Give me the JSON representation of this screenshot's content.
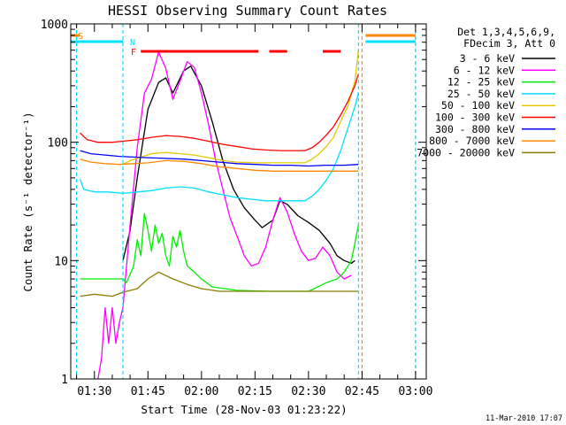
{
  "chart_data": {
    "type": "line",
    "title": "HESSI Observing Summary Count Rates",
    "xlabel": "Start Time (28-Nov-03 01:23:22)",
    "ylabel": "Count Rate (s⁻¹ detector⁻¹)",
    "yscale": "log",
    "ylim": [
      1,
      1000
    ],
    "xlim": [
      "01:23:22",
      "03:03:00"
    ],
    "y_ticks": [
      "1",
      "10",
      "100",
      "1000"
    ],
    "x_ticks": [
      "01:30",
      "01:45",
      "02:00",
      "02:15",
      "02:30",
      "02:45",
      "03:00"
    ],
    "grid": false,
    "legend_position": "top-right",
    "legend_header": [
      "Det 1,3,4,5,6,9,",
      "FDecim 3, Att 0"
    ],
    "footer_date": "11-Mar-2010 17:07",
    "flags": [
      {
        "label": "S",
        "color": "#ff8800",
        "segments": [
          [
            "01:23:22",
            "01:26"
          ],
          [
            "02:46",
            "03:00"
          ]
        ]
      },
      {
        "label": "N",
        "color": "#00e0ff",
        "segments": [
          [
            "01:23:22",
            "01:38"
          ],
          [
            "02:46",
            "03:00"
          ]
        ]
      },
      {
        "label": "F",
        "color": "#ff0000",
        "segments": [
          [
            "01:43",
            "02:16"
          ],
          [
            "02:19",
            "02:24"
          ],
          [
            "02:34",
            "02:39"
          ]
        ]
      }
    ],
    "markers": [
      {
        "time": "01:25",
        "color": "#00e0ff"
      },
      {
        "time": "01:38",
        "color": "#00e0ff"
      },
      {
        "time": "02:44",
        "color": "#00e0ff"
      },
      {
        "time": "02:45",
        "color": "#ff8800"
      },
      {
        "time": "03:00",
        "color": "#ff8800"
      },
      {
        "time": "03:00",
        "color": "#00e0ff"
      }
    ],
    "series": [
      {
        "name": "3 - 6 keV",
        "color": "#000000",
        "points": [
          [
            "01:38",
            10
          ],
          [
            "01:40",
            18
          ],
          [
            "01:42",
            50
          ],
          [
            "01:45",
            190
          ],
          [
            "01:48",
            320
          ],
          [
            "01:50",
            350
          ],
          [
            "01:52",
            260
          ],
          [
            "01:55",
            400
          ],
          [
            "01:57",
            440
          ],
          [
            "02:00",
            300
          ],
          [
            "02:03",
            150
          ],
          [
            "02:06",
            70
          ],
          [
            "02:09",
            40
          ],
          [
            "02:12",
            28
          ],
          [
            "02:15",
            22
          ],
          [
            "02:17",
            19
          ],
          [
            "02:20",
            22
          ],
          [
            "02:22",
            32
          ],
          [
            "02:24",
            30
          ],
          [
            "02:27",
            24
          ],
          [
            "02:30",
            21
          ],
          [
            "02:33",
            18
          ],
          [
            "02:36",
            14
          ],
          [
            "02:38",
            11
          ],
          [
            "02:40",
            10
          ],
          [
            "02:42",
            9.5
          ],
          [
            "02:43",
            10
          ]
        ]
      },
      {
        "name": "6 - 12 keV",
        "color": "#ff00ff",
        "points": [
          [
            "01:31",
            1
          ],
          [
            "01:32",
            1.5
          ],
          [
            "01:33",
            4
          ],
          [
            "01:34",
            2
          ],
          [
            "01:35",
            4
          ],
          [
            "01:36",
            2
          ],
          [
            "01:37",
            3
          ],
          [
            "01:38",
            4
          ],
          [
            "01:40",
            20
          ],
          [
            "01:42",
            90
          ],
          [
            "01:44",
            260
          ],
          [
            "01:46",
            340
          ],
          [
            "01:48",
            580
          ],
          [
            "01:50",
            420
          ],
          [
            "01:52",
            230
          ],
          [
            "01:54",
            330
          ],
          [
            "01:56",
            480
          ],
          [
            "01:58",
            430
          ],
          [
            "02:00",
            260
          ],
          [
            "02:02",
            140
          ],
          [
            "02:04",
            70
          ],
          [
            "02:06",
            40
          ],
          [
            "02:08",
            23
          ],
          [
            "02:10",
            16
          ],
          [
            "02:12",
            11
          ],
          [
            "02:14",
            9
          ],
          [
            "02:16",
            9.5
          ],
          [
            "02:18",
            13
          ],
          [
            "02:20",
            22
          ],
          [
            "02:22",
            34
          ],
          [
            "02:24",
            26
          ],
          [
            "02:26",
            17
          ],
          [
            "02:28",
            12
          ],
          [
            "02:30",
            10
          ],
          [
            "02:32",
            10.5
          ],
          [
            "02:34",
            13
          ],
          [
            "02:36",
            11
          ],
          [
            "02:38",
            8
          ],
          [
            "02:40",
            7
          ],
          [
            "02:42",
            7.5
          ]
        ]
      },
      {
        "name": "12 - 25 keV",
        "color": "#00ee00",
        "points": [
          [
            "01:26",
            7
          ],
          [
            "01:38",
            7
          ],
          [
            "01:39",
            6.5
          ],
          [
            "01:41",
            9
          ],
          [
            "01:42",
            15
          ],
          [
            "01:43",
            11
          ],
          [
            "01:44",
            25
          ],
          [
            "01:45",
            18
          ],
          [
            "01:46",
            12
          ],
          [
            "01:47",
            20
          ],
          [
            "01:48",
            14
          ],
          [
            "01:49",
            17
          ],
          [
            "01:50",
            11
          ],
          [
            "01:51",
            9
          ],
          [
            "01:52",
            16
          ],
          [
            "01:53",
            13
          ],
          [
            "01:54",
            18
          ],
          [
            "01:55",
            12
          ],
          [
            "01:56",
            9
          ],
          [
            "01:58",
            8
          ],
          [
            "02:00",
            7
          ],
          [
            "02:03",
            6
          ],
          [
            "02:10",
            5.6
          ],
          [
            "02:20",
            5.5
          ],
          [
            "02:30",
            5.5
          ],
          [
            "02:35",
            6.5
          ],
          [
            "02:38",
            7
          ],
          [
            "02:40",
            8
          ],
          [
            "02:42",
            10
          ],
          [
            "02:43",
            14
          ],
          [
            "02:44",
            20
          ]
        ]
      },
      {
        "name": "25 - 50 keV",
        "color": "#00e0ff",
        "points": [
          [
            "01:26",
            49
          ],
          [
            "01:27",
            40
          ],
          [
            "01:30",
            38
          ],
          [
            "01:34",
            38
          ],
          [
            "01:38",
            37
          ],
          [
            "01:42",
            38
          ],
          [
            "01:46",
            39
          ],
          [
            "01:50",
            41
          ],
          [
            "01:54",
            42
          ],
          [
            "01:58",
            41
          ],
          [
            "02:02",
            38
          ],
          [
            "02:06",
            36
          ],
          [
            "02:10",
            34
          ],
          [
            "02:14",
            33
          ],
          [
            "02:18",
            32
          ],
          [
            "02:22",
            32
          ],
          [
            "02:26",
            32
          ],
          [
            "02:29",
            32
          ],
          [
            "02:31",
            35
          ],
          [
            "02:33",
            40
          ],
          [
            "02:35",
            48
          ],
          [
            "02:37",
            60
          ],
          [
            "02:39",
            85
          ],
          [
            "02:41",
            130
          ],
          [
            "02:43",
            200
          ],
          [
            "02:44",
            260
          ]
        ]
      },
      {
        "name": "50 - 100 keV",
        "color": "#e6c800",
        "points": [
          [
            "01:38",
            65
          ],
          [
            "01:40",
            70
          ],
          [
            "01:43",
            75
          ],
          [
            "01:46",
            80
          ],
          [
            "01:50",
            82
          ],
          [
            "01:54",
            80
          ],
          [
            "01:58",
            78
          ],
          [
            "02:02",
            74
          ],
          [
            "02:06",
            70
          ],
          [
            "02:10",
            68
          ],
          [
            "02:15",
            67
          ],
          [
            "02:20",
            67
          ],
          [
            "02:25",
            67
          ],
          [
            "02:29",
            67
          ],
          [
            "02:31",
            72
          ],
          [
            "02:33",
            80
          ],
          [
            "02:35",
            92
          ],
          [
            "02:37",
            110
          ],
          [
            "02:39",
            150
          ],
          [
            "02:41",
            200
          ],
          [
            "02:43",
            330
          ],
          [
            "02:44",
            600
          ]
        ]
      },
      {
        "name": "100 - 300 keV",
        "color": "#ff0000",
        "points": [
          [
            "01:26",
            120
          ],
          [
            "01:28",
            105
          ],
          [
            "01:31",
            100
          ],
          [
            "01:35",
            100
          ],
          [
            "01:38",
            102
          ],
          [
            "01:42",
            105
          ],
          [
            "01:46",
            110
          ],
          [
            "01:50",
            114
          ],
          [
            "01:54",
            112
          ],
          [
            "01:58",
            108
          ],
          [
            "02:02",
            102
          ],
          [
            "02:06",
            96
          ],
          [
            "02:10",
            92
          ],
          [
            "02:14",
            88
          ],
          [
            "02:18",
            86
          ],
          [
            "02:22",
            85
          ],
          [
            "02:26",
            85
          ],
          [
            "02:29",
            85
          ],
          [
            "02:31",
            90
          ],
          [
            "02:33",
            100
          ],
          [
            "02:35",
            115
          ],
          [
            "02:37",
            135
          ],
          [
            "02:39",
            170
          ],
          [
            "02:41",
            220
          ],
          [
            "02:43",
            300
          ],
          [
            "02:44",
            380
          ]
        ]
      },
      {
        "name": "300 - 800 keV",
        "color": "#0000ff",
        "points": [
          [
            "01:26",
            85
          ],
          [
            "01:29",
            80
          ],
          [
            "01:33",
            78
          ],
          [
            "01:37",
            76
          ],
          [
            "01:41",
            75
          ],
          [
            "01:45",
            74
          ],
          [
            "01:50",
            73
          ],
          [
            "01:55",
            72
          ],
          [
            "02:00",
            70
          ],
          [
            "02:05",
            68
          ],
          [
            "02:10",
            66
          ],
          [
            "02:15",
            65
          ],
          [
            "02:20",
            64
          ],
          [
            "02:25",
            64
          ],
          [
            "02:30",
            63
          ],
          [
            "02:35",
            64
          ],
          [
            "02:40",
            64
          ],
          [
            "02:44",
            65
          ]
        ]
      },
      {
        "name": "800 - 7000 keV",
        "color": "#ff8800",
        "points": [
          [
            "01:26",
            72
          ],
          [
            "01:29",
            68
          ],
          [
            "01:33",
            66
          ],
          [
            "01:37",
            65
          ],
          [
            "01:41",
            66
          ],
          [
            "01:45",
            67
          ],
          [
            "01:50",
            70
          ],
          [
            "01:55",
            69
          ],
          [
            "02:00",
            66
          ],
          [
            "02:05",
            62
          ],
          [
            "02:10",
            60
          ],
          [
            "02:15",
            58
          ],
          [
            "02:20",
            57
          ],
          [
            "02:25",
            57
          ],
          [
            "02:30",
            57
          ],
          [
            "02:35",
            57
          ],
          [
            "02:40",
            57
          ],
          [
            "02:44",
            57
          ]
        ]
      },
      {
        "name": "7000 - 20000 keV",
        "color": "#8b7d00",
        "points": [
          [
            "01:26",
            5
          ],
          [
            "01:30",
            5.2
          ],
          [
            "01:35",
            5
          ],
          [
            "01:38",
            5.4
          ],
          [
            "01:42",
            5.8
          ],
          [
            "01:45",
            7
          ],
          [
            "01:48",
            8
          ],
          [
            "01:52",
            7
          ],
          [
            "01:56",
            6.3
          ],
          [
            "02:00",
            5.8
          ],
          [
            "02:05",
            5.5
          ],
          [
            "02:10",
            5.5
          ],
          [
            "02:20",
            5.5
          ],
          [
            "02:30",
            5.5
          ],
          [
            "02:40",
            5.5
          ],
          [
            "02:44",
            5.5
          ]
        ]
      }
    ]
  }
}
